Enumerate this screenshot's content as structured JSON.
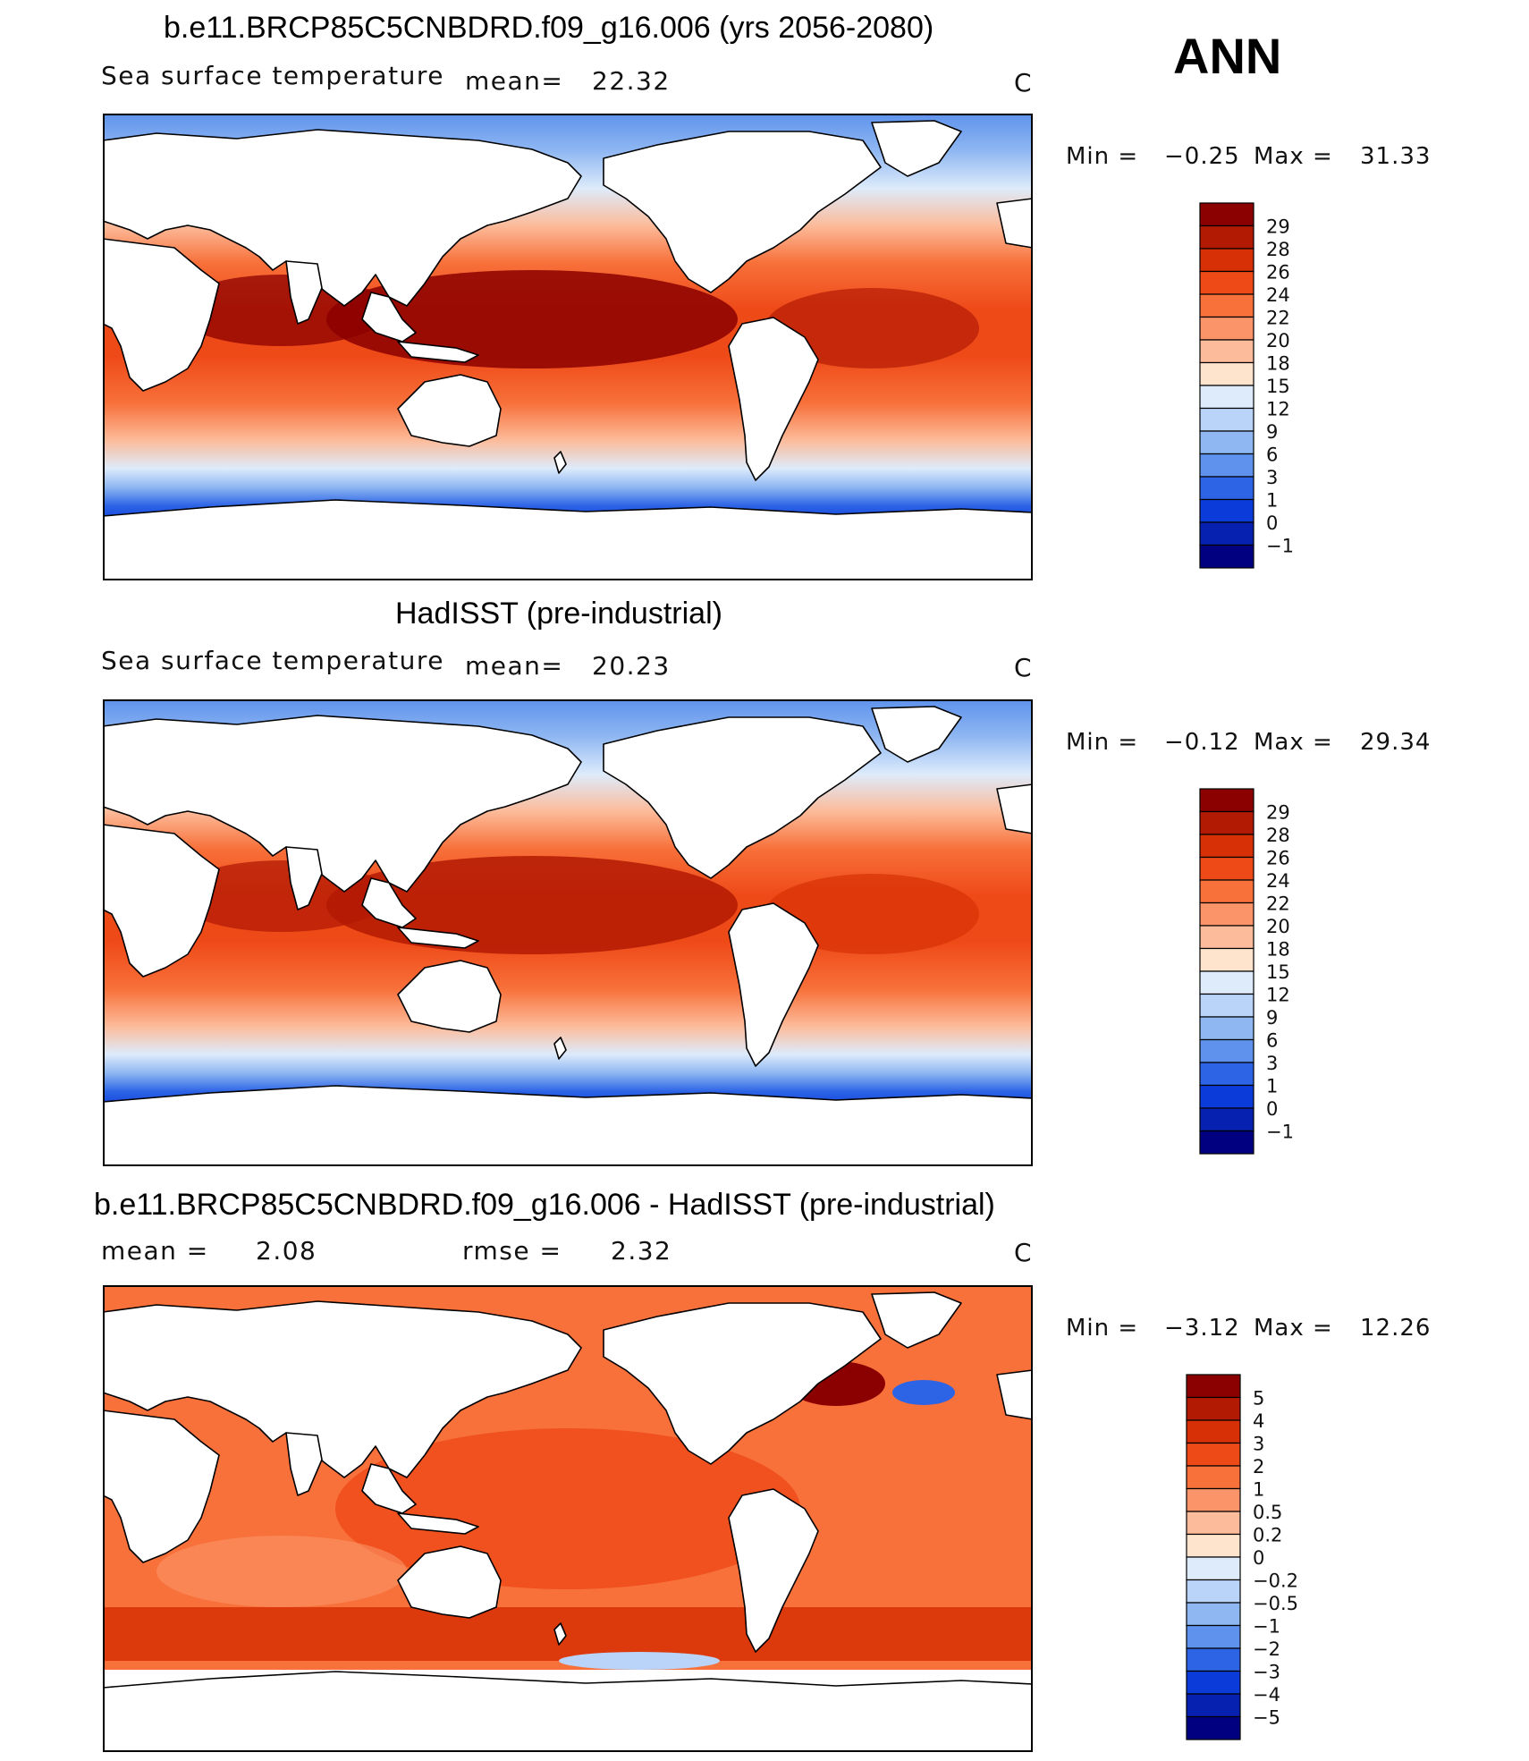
{
  "header": {
    "season": "ANN"
  },
  "chart_data": [
    {
      "type": "heatmap",
      "title": "b.e11.BRCP85C5CNBDRD.f09_g16.006 (yrs 2056-2080)",
      "subtitle": "Sea surface temperature",
      "mean_label": "mean=",
      "mean": "22.32",
      "units": "C",
      "min_label": "Min  =",
      "min": "−0.25",
      "max_label": "Max  =",
      "max": "31.33",
      "colorbar": {
        "levels": [
          "29",
          "28",
          "26",
          "24",
          "22",
          "20",
          "18",
          "15",
          "12",
          "9",
          "6",
          "3",
          "1",
          "0",
          "−1"
        ],
        "colors": [
          "#8B0000",
          "#B31A04",
          "#D73006",
          "#EE4A18",
          "#F8703A",
          "#FB9468",
          "#FCBB9A",
          "#FEE4CC",
          "#DDEBFB",
          "#B9D4F8",
          "#8FB7F2",
          "#5E92EC",
          "#2D64E6",
          "#0B3BD9",
          "#0620B0",
          "#000080"
        ]
      },
      "mean_temp_by_region": {
        "tropics_west_pacific": 29.5,
        "subtropics": 24,
        "midlatitude": 15,
        "polar": 0
      }
    },
    {
      "type": "heatmap",
      "title": "HadISST (pre-industrial)",
      "subtitle": "Sea surface temperature",
      "mean_label": "mean=",
      "mean": "20.23",
      "units": "C",
      "min_label": "Min  =",
      "min": "−0.12",
      "max_label": "Max  =",
      "max": "29.34",
      "colorbar": {
        "levels": [
          "29",
          "28",
          "26",
          "24",
          "22",
          "20",
          "18",
          "15",
          "12",
          "9",
          "6",
          "3",
          "1",
          "0",
          "−1"
        ],
        "colors": [
          "#8B0000",
          "#B31A04",
          "#D73006",
          "#EE4A18",
          "#F8703A",
          "#FB9468",
          "#FCBB9A",
          "#FEE4CC",
          "#DDEBFB",
          "#B9D4F8",
          "#8FB7F2",
          "#5E92EC",
          "#2D64E6",
          "#0B3BD9",
          "#0620B0",
          "#000080"
        ]
      },
      "mean_temp_by_region": {
        "tropics_west_pacific": 28.5,
        "subtropics": 24,
        "midlatitude": 13,
        "polar": -1
      }
    },
    {
      "type": "heatmap",
      "title": "b.e11.BRCP85C5CNBDRD.f09_g16.006 - HadISST (pre-industrial)",
      "subtitle": "mean =",
      "mean": "2.08",
      "rmse_label": "rmse =",
      "rmse": "2.32",
      "units": "C",
      "min_label": "Min  =",
      "min": "−3.12",
      "max_label": "Max  =",
      "max": "12.26",
      "colorbar": {
        "levels": [
          "5",
          "4",
          "3",
          "2",
          "1",
          "0.5",
          "0.2",
          "0",
          "−0.2",
          "−0.5",
          "−1",
          "−2",
          "−3",
          "−4",
          "−5"
        ],
        "colors": [
          "#8B0000",
          "#B31A04",
          "#D73006",
          "#EE4A18",
          "#F8703A",
          "#FB9468",
          "#FCBB9A",
          "#FEE4CC",
          "#DDEBFB",
          "#B9D4F8",
          "#8FB7F2",
          "#5E92EC",
          "#2D64E6",
          "#0B3BD9",
          "#0620B0",
          "#000080"
        ]
      },
      "mean_diff_by_region": {
        "global": 2.08,
        "north_atlantic": -3,
        "southern_ocean": 4
      }
    }
  ]
}
